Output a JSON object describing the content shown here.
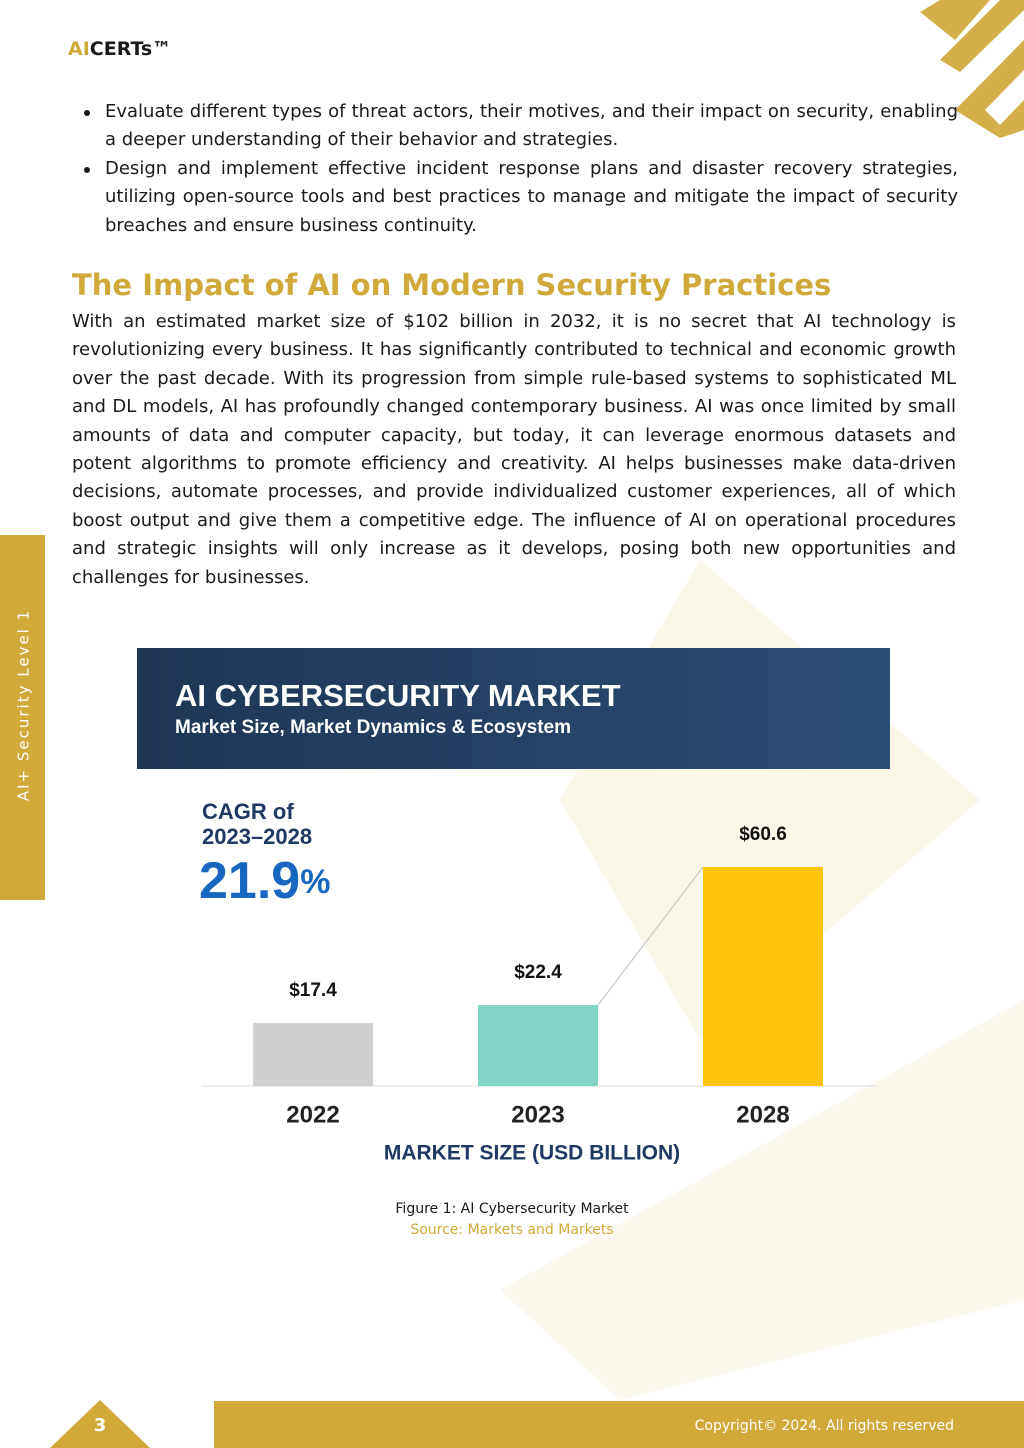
{
  "header": {
    "logo_accent": "AI",
    "logo_text": "CERTs™"
  },
  "sidebar": {
    "label": "AI+ Security Level 1"
  },
  "bullets": [
    "Evaluate different types of threat actors, their motives, and their impact on security, enabling a deeper understanding of their behavior and strategies.",
    "Design and implement effective incident response plans and disaster recovery strategies, utilizing open-source tools and best practices to manage and mitigate the impact of security breaches and ensure business continuity."
  ],
  "section": {
    "heading": "The Impact of AI on Modern Security Practices",
    "paragraph": "With an estimated market size of $102 billion in 2032, it is no secret that AI technology is revolutionizing every business. It has significantly contributed to technical and economic growth over the past decade. With its progression from simple rule-based systems to sophisticated ML and DL models, AI has profoundly changed contemporary business. AI was once limited by small amounts of data and computer capacity, but today, it can leverage enormous datasets and potent algorithms to promote efficiency and creativity. AI helps businesses make data-driven decisions, automate processes, and provide individualized customer experiences, all of which boost output and give them a competitive edge. The influence of AI on operational procedures and strategic insights will only increase as it develops, posing both new opportunities and challenges for businesses."
  },
  "chart_data": {
    "type": "bar",
    "title": "AI CYBERSECURITY MARKET",
    "subtitle": "Market Size, Market Dynamics & Ecosystem",
    "categories": [
      "2022",
      "2023",
      "2028"
    ],
    "values": [
      17.4,
      22.4,
      60.6
    ],
    "value_labels": [
      "$17.4",
      "$22.4",
      "$60.6"
    ],
    "colors": [
      "#cfcfcf",
      "#82d4c5",
      "#ffc40c"
    ],
    "x_label": "MARKET SIZE (USD BILLION)",
    "annotation": {
      "line1": "CAGR of",
      "line2": "2023–2028",
      "value": 21.9,
      "unit": "%"
    }
  },
  "caption": {
    "figure": "Figure 1: AI Cybersecurity Market",
    "source": "Source: Markets and Markets"
  },
  "footer": {
    "page_number": 3,
    "copyright": "Copyright© 2024. All rights reserved"
  }
}
